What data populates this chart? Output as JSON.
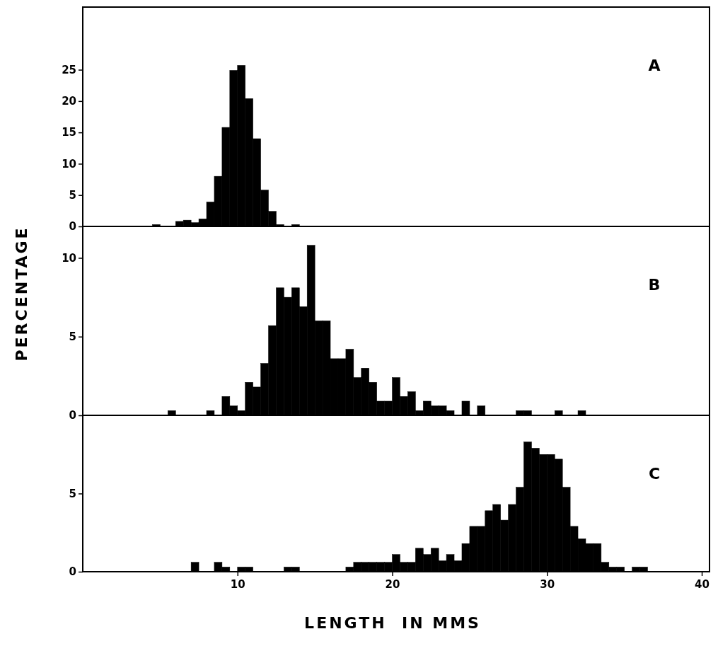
{
  "chart_data": [
    {
      "type": "histogram",
      "annotations": [
        "A"
      ],
      "xlim": [
        0,
        40.5
      ],
      "ylim": [
        0,
        35
      ],
      "yticks": [
        0,
        5,
        10,
        15,
        20,
        25
      ],
      "tick_labels": "y",
      "color": "#000000",
      "bins": [
        4.5,
        5,
        5.5,
        6,
        6.5,
        7,
        7.5,
        8,
        8.5,
        9,
        9.5,
        10,
        10.5,
        11,
        11.5,
        12,
        12.5,
        13,
        13.5,
        14
      ],
      "values": [
        0.3,
        0,
        0,
        0.8,
        1.0,
        0.6,
        1.2,
        3.9,
        8.0,
        15.8,
        24.9,
        25.7,
        20.4,
        14.0,
        5.8,
        2.4,
        0.3,
        0,
        0.3
      ]
    },
    {
      "type": "histogram",
      "annotations": [
        "B"
      ],
      "ylabel": "PERCENTAGE",
      "xlim": [
        0,
        40.5
      ],
      "ylim": [
        0,
        12
      ],
      "yticks": [
        0,
        5,
        10
      ],
      "tick_labels": "y",
      "color": "#000000",
      "bins": [
        5.5,
        6,
        6.5,
        7,
        7.5,
        8,
        8.5,
        9,
        9.5,
        10,
        10.5,
        11,
        11.5,
        12,
        12.5,
        13,
        13.5,
        14,
        14.5,
        15,
        15.5,
        16,
        16.5,
        17,
        17.5,
        18,
        18.5,
        19,
        19.5,
        20,
        20.5,
        21,
        21.5,
        22,
        22.5,
        23,
        23.5,
        24,
        24.5,
        25,
        25.5,
        26,
        26.5,
        27,
        27.5,
        28,
        28.5,
        29,
        29.5,
        30,
        30.5,
        31,
        31.5,
        32,
        32.5
      ],
      "values": [
        0.3,
        0,
        0,
        0,
        0,
        0.3,
        0,
        1.2,
        0.6,
        0.3,
        2.1,
        1.8,
        3.3,
        5.7,
        8.1,
        7.5,
        8.1,
        6.9,
        10.8,
        6.0,
        6.0,
        3.6,
        3.6,
        4.2,
        2.4,
        3.0,
        2.1,
        0.9,
        0.9,
        2.4,
        1.2,
        1.5,
        0.3,
        0.9,
        0.6,
        0.6,
        0.3,
        0,
        0.9,
        0,
        0.6,
        0,
        0,
        0,
        0,
        0.3,
        0.3,
        0,
        0,
        0,
        0.3,
        0,
        0,
        0.3
      ]
    },
    {
      "type": "histogram",
      "annotations": [
        "C"
      ],
      "xlabel": "LENGTH  IN MMS",
      "xlim": [
        0,
        40.5
      ],
      "ylim": [
        0,
        10
      ],
      "yticks": [
        0,
        5
      ],
      "xticks": [
        10,
        20,
        30,
        40
      ],
      "color": "#000000",
      "bins": [
        7,
        7.5,
        8,
        8.5,
        9,
        9.5,
        10,
        10.5,
        11,
        11.5,
        12,
        12.5,
        13,
        13.5,
        14,
        14.5,
        15,
        15.5,
        16,
        16.5,
        17,
        17.5,
        18,
        18.5,
        19,
        19.5,
        20,
        20.5,
        21,
        21.5,
        22,
        22.5,
        23,
        23.5,
        24,
        24.5,
        25,
        25.5,
        26,
        26.5,
        27,
        27.5,
        28,
        28.5,
        29,
        29.5,
        30,
        30.5,
        31,
        31.5,
        32,
        32.5,
        33,
        33.5,
        34,
        34.5,
        35,
        35.5,
        36,
        36.5
      ],
      "values": [
        0.6,
        0,
        0,
        0.6,
        0.3,
        0,
        0.3,
        0.3,
        0,
        0,
        0,
        0,
        0.3,
        0.3,
        0,
        0,
        0,
        0,
        0,
        0,
        0.3,
        0.6,
        0.6,
        0.6,
        0.6,
        0.6,
        1.1,
        0.6,
        0.6,
        1.5,
        1.1,
        1.5,
        0.7,
        1.1,
        0.7,
        1.8,
        2.9,
        2.9,
        3.9,
        4.3,
        3.3,
        4.3,
        5.4,
        8.3,
        7.9,
        7.5,
        7.5,
        7.2,
        5.4,
        2.9,
        2.1,
        1.8,
        1.8,
        0.6,
        0.3,
        0.3,
        0,
        0.3,
        0.3
      ]
    }
  ]
}
